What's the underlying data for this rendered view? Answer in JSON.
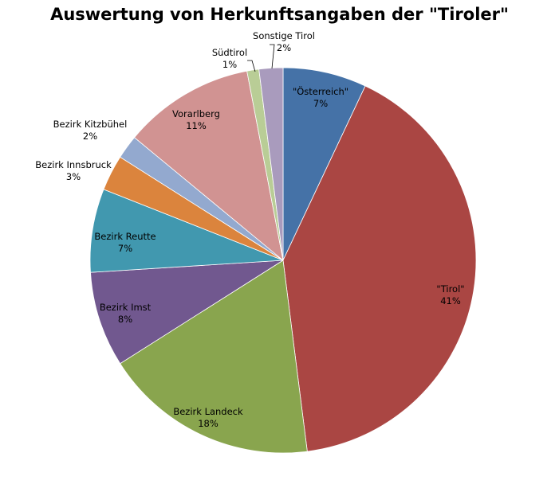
{
  "chart_data": {
    "type": "pie",
    "title": "Auswertung von Herkunftsangaben  der \"Tiroler\"",
    "start_angle_deg": 0,
    "direction": "clockwise",
    "slices": [
      {
        "name": "\"Österreich\"",
        "value": 7,
        "label_pct": "7%",
        "color": "#4572A7"
      },
      {
        "name": "\"Tirol\"",
        "value": 41,
        "label_pct": "41%",
        "color": "#AA4643"
      },
      {
        "name": "Bezirk Landeck",
        "value": 18,
        "label_pct": "18%",
        "color": "#89A54E"
      },
      {
        "name": "Bezirk Imst",
        "value": 8,
        "label_pct": "8%",
        "color": "#71588F"
      },
      {
        "name": "Bezirk Reutte",
        "value": 7,
        "label_pct": "7%",
        "color": "#4198AF"
      },
      {
        "name": "Bezirk Innsbruck",
        "value": 3,
        "label_pct": "3%",
        "color": "#DB843D"
      },
      {
        "name": "Bezirk Kitzbühel",
        "value": 2,
        "label_pct": "2%",
        "color": "#93A9CF"
      },
      {
        "name": "Vorarlberg",
        "value": 11,
        "label_pct": "11%",
        "color": "#D19392"
      },
      {
        "name": "Südtirol",
        "value": 1,
        "label_pct": "1%",
        "color": "#B9CD96"
      },
      {
        "name": "Sonstige Tirol",
        "value": 2,
        "label_pct": "2%",
        "color": "#A99BBD"
      }
    ],
    "legend": "none",
    "data_labels": "category name and percentage"
  }
}
